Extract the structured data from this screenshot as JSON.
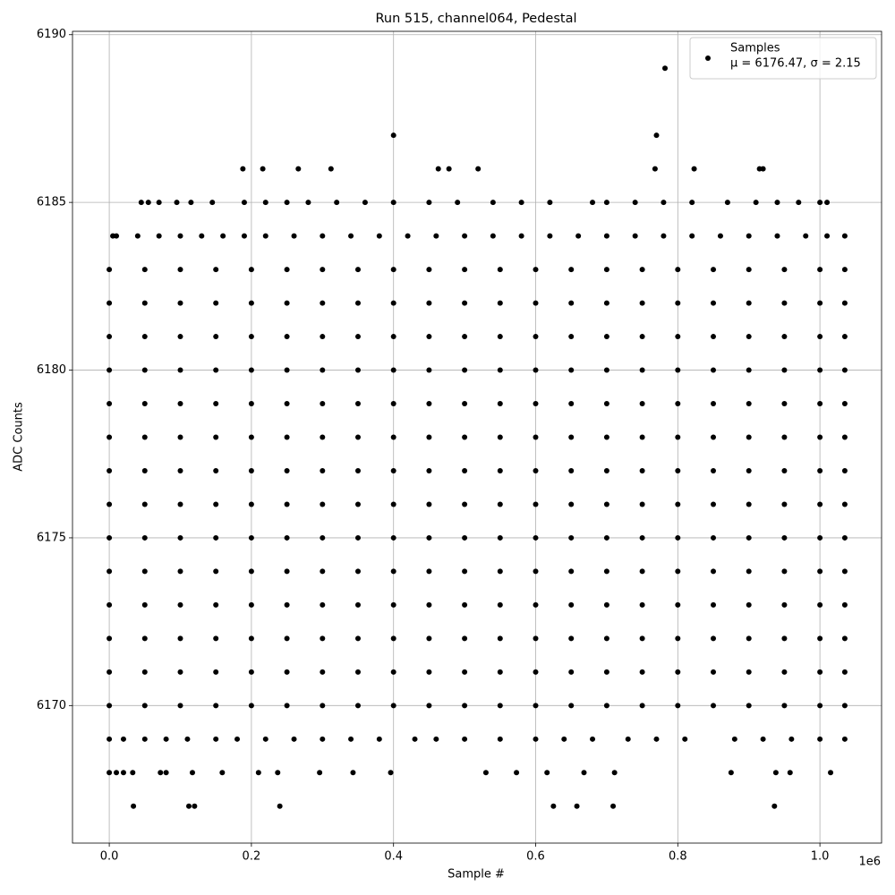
{
  "chart_data": {
    "type": "scatter",
    "title": "Run 515, channel064, Pedestal",
    "x_label": "Sample #",
    "y_label": "ADC Counts",
    "x_offset_label": "1e6",
    "xlim": [
      -51750,
      1086750
    ],
    "ylim": [
      6165.9,
      6190.1
    ],
    "xticks": [
      {
        "value": 0,
        "label": "0.0"
      },
      {
        "value": 200000,
        "label": "0.2"
      },
      {
        "value": 400000,
        "label": "0.4"
      },
      {
        "value": 600000,
        "label": "0.6"
      },
      {
        "value": 800000,
        "label": "0.8"
      },
      {
        "value": 1000000,
        "label": "1.0"
      }
    ],
    "yticks": [
      6170,
      6175,
      6180,
      6185,
      6190
    ],
    "grid": true,
    "legend": "upper right",
    "series": [
      {
        "name": "Samples",
        "legend_note": "μ = 6176.47, σ = 2.15",
        "color": "#000000",
        "x": [
          0,
          50000,
          100000,
          150000,
          200000,
          250000,
          300000,
          350000,
          400000,
          450000,
          500000,
          550000,
          600000,
          650000,
          700000,
          750000,
          800000,
          850000,
          900000,
          950000,
          1000000,
          1035000,
          0,
          50000,
          100000,
          150000,
          200000,
          250000,
          300000,
          350000,
          400000,
          450000,
          500000,
          550000,
          600000,
          650000,
          700000,
          750000,
          800000,
          850000,
          900000,
          950000,
          1000000,
          1035000,
          0,
          50000,
          100000,
          150000,
          200000,
          250000,
          300000,
          350000,
          400000,
          450000,
          500000,
          550000,
          600000,
          650000,
          700000,
          750000,
          800000,
          850000,
          900000,
          950000,
          1000000,
          1035000,
          0,
          50000,
          100000,
          150000,
          200000,
          250000,
          300000,
          350000,
          400000,
          450000,
          500000,
          550000,
          600000,
          650000,
          700000,
          750000,
          800000,
          850000,
          900000,
          950000,
          1000000,
          1035000,
          0,
          50000,
          100000,
          150000,
          200000,
          250000,
          300000,
          350000,
          400000,
          450000,
          500000,
          550000,
          600000,
          650000,
          700000,
          750000,
          800000,
          850000,
          900000,
          950000,
          1000000,
          1035000,
          0,
          50000,
          100000,
          150000,
          200000,
          250000,
          300000,
          350000,
          400000,
          450000,
          500000,
          550000,
          600000,
          650000,
          700000,
          750000,
          800000,
          850000,
          900000,
          950000,
          1000000,
          1035000,
          0,
          50000,
          100000,
          150000,
          200000,
          250000,
          300000,
          350000,
          400000,
          450000,
          500000,
          550000,
          600000,
          650000,
          700000,
          750000,
          800000,
          850000,
          900000,
          950000,
          1000000,
          1035000,
          0,
          50000,
          100000,
          150000,
          200000,
          250000,
          300000,
          350000,
          400000,
          450000,
          500000,
          550000,
          600000,
          650000,
          700000,
          750000,
          800000,
          850000,
          900000,
          950000,
          1000000,
          1035000,
          0,
          50000,
          100000,
          150000,
          200000,
          250000,
          300000,
          350000,
          400000,
          450000,
          500000,
          550000,
          600000,
          650000,
          700000,
          750000,
          800000,
          850000,
          900000,
          950000,
          1000000,
          1035000,
          0,
          50000,
          100000,
          150000,
          200000,
          250000,
          300000,
          350000,
          400000,
          450000,
          500000,
          550000,
          600000,
          650000,
          700000,
          750000,
          800000,
          850000,
          900000,
          950000,
          1000000,
          1035000,
          0,
          50000,
          100000,
          150000,
          200000,
          250000,
          300000,
          350000,
          400000,
          450000,
          500000,
          550000,
          600000,
          650000,
          700000,
          750000,
          800000,
          850000,
          900000,
          950000,
          1000000,
          1035000,
          0,
          50000,
          100000,
          150000,
          200000,
          250000,
          300000,
          350000,
          400000,
          450000,
          500000,
          550000,
          600000,
          650000,
          700000,
          750000,
          800000,
          850000,
          900000,
          950000,
          1000000,
          1035000,
          0,
          50000,
          100000,
          150000,
          200000,
          250000,
          300000,
          350000,
          400000,
          450000,
          500000,
          550000,
          600000,
          650000,
          700000,
          750000,
          800000,
          850000,
          900000,
          950000,
          1000000,
          1035000,
          0,
          50000,
          100000,
          150000,
          200000,
          250000,
          300000,
          350000,
          400000,
          450000,
          500000,
          550000,
          600000,
          650000,
          700000,
          750000,
          800000,
          850000,
          900000,
          950000,
          1000000,
          1035000,
          34000,
          112000,
          120000,
          240000,
          625000,
          658000,
          709000,
          936000,
          0,
          10000,
          20000,
          33000,
          72000,
          80000,
          117000,
          159000,
          210000,
          237000,
          296000,
          343000,
          396000,
          530000,
          573000,
          616000,
          668000,
          711000,
          875000,
          938000,
          958000,
          1015000,
          0,
          20000,
          50000,
          80000,
          110000,
          150000,
          180000,
          220000,
          260000,
          300000,
          340000,
          380000,
          430000,
          460000,
          500000,
          550000,
          600000,
          640000,
          680000,
          730000,
          770000,
          810000,
          880000,
          920000,
          960000,
          1000000,
          1035000,
          5000,
          10000,
          40000,
          70000,
          100000,
          130000,
          160000,
          190000,
          220000,
          260000,
          300000,
          340000,
          380000,
          420000,
          460000,
          500000,
          540000,
          580000,
          620000,
          660000,
          700000,
          740000,
          780000,
          820000,
          860000,
          900000,
          940000,
          980000,
          1010000,
          1035000,
          45000,
          55000,
          70000,
          95000,
          115000,
          145000,
          190000,
          220000,
          250000,
          280000,
          320000,
          360000,
          400000,
          450000,
          490000,
          540000,
          580000,
          620000,
          680000,
          700000,
          740000,
          780000,
          820000,
          870000,
          910000,
          940000,
          970000,
          1000000,
          1010000,
          188000,
          216000,
          266000,
          312000,
          463000,
          478000,
          519000,
          768000,
          823000,
          915000,
          920000,
          400000,
          770000,
          782000
        ],
        "values": [
          6170,
          6170,
          6170,
          6170,
          6170,
          6170,
          6170,
          6170,
          6170,
          6170,
          6170,
          6170,
          6170,
          6170,
          6170,
          6170,
          6170,
          6170,
          6170,
          6170,
          6170,
          6170,
          6171,
          6171,
          6171,
          6171,
          6171,
          6171,
          6171,
          6171,
          6171,
          6171,
          6171,
          6171,
          6171,
          6171,
          6171,
          6171,
          6171,
          6171,
          6171,
          6171,
          6171,
          6171,
          6172,
          6172,
          6172,
          6172,
          6172,
          6172,
          6172,
          6172,
          6172,
          6172,
          6172,
          6172,
          6172,
          6172,
          6172,
          6172,
          6172,
          6172,
          6172,
          6172,
          6172,
          6172,
          6173,
          6173,
          6173,
          6173,
          6173,
          6173,
          6173,
          6173,
          6173,
          6173,
          6173,
          6173,
          6173,
          6173,
          6173,
          6173,
          6173,
          6173,
          6173,
          6173,
          6173,
          6173,
          6174,
          6174,
          6174,
          6174,
          6174,
          6174,
          6174,
          6174,
          6174,
          6174,
          6174,
          6174,
          6174,
          6174,
          6174,
          6174,
          6174,
          6174,
          6174,
          6174,
          6174,
          6174,
          6175,
          6175,
          6175,
          6175,
          6175,
          6175,
          6175,
          6175,
          6175,
          6175,
          6175,
          6175,
          6175,
          6175,
          6175,
          6175,
          6175,
          6175,
          6175,
          6175,
          6175,
          6175,
          6176,
          6176,
          6176,
          6176,
          6176,
          6176,
          6176,
          6176,
          6176,
          6176,
          6176,
          6176,
          6176,
          6176,
          6176,
          6176,
          6176,
          6176,
          6176,
          6176,
          6176,
          6176,
          6177,
          6177,
          6177,
          6177,
          6177,
          6177,
          6177,
          6177,
          6177,
          6177,
          6177,
          6177,
          6177,
          6177,
          6177,
          6177,
          6177,
          6177,
          6177,
          6177,
          6177,
          6177,
          6178,
          6178,
          6178,
          6178,
          6178,
          6178,
          6178,
          6178,
          6178,
          6178,
          6178,
          6178,
          6178,
          6178,
          6178,
          6178,
          6178,
          6178,
          6178,
          6178,
          6178,
          6178,
          6179,
          6179,
          6179,
          6179,
          6179,
          6179,
          6179,
          6179,
          6179,
          6179,
          6179,
          6179,
          6179,
          6179,
          6179,
          6179,
          6179,
          6179,
          6179,
          6179,
          6179,
          6179,
          6180,
          6180,
          6180,
          6180,
          6180,
          6180,
          6180,
          6180,
          6180,
          6180,
          6180,
          6180,
          6180,
          6180,
          6180,
          6180,
          6180,
          6180,
          6180,
          6180,
          6180,
          6180,
          6181,
          6181,
          6181,
          6181,
          6181,
          6181,
          6181,
          6181,
          6181,
          6181,
          6181,
          6181,
          6181,
          6181,
          6181,
          6181,
          6181,
          6181,
          6181,
          6181,
          6181,
          6181,
          6182,
          6182,
          6182,
          6182,
          6182,
          6182,
          6182,
          6182,
          6182,
          6182,
          6182,
          6182,
          6182,
          6182,
          6182,
          6182,
          6182,
          6182,
          6182,
          6182,
          6182,
          6182,
          6183,
          6183,
          6183,
          6183,
          6183,
          6183,
          6183,
          6183,
          6183,
          6183,
          6183,
          6183,
          6183,
          6183,
          6183,
          6183,
          6183,
          6183,
          6183,
          6183,
          6183,
          6183,
          6167,
          6167,
          6167,
          6167,
          6167,
          6167,
          6167,
          6167,
          6168,
          6168,
          6168,
          6168,
          6168,
          6168,
          6168,
          6168,
          6168,
          6168,
          6168,
          6168,
          6168,
          6168,
          6168,
          6168,
          6168,
          6168,
          6168,
          6168,
          6168,
          6168,
          6169,
          6169,
          6169,
          6169,
          6169,
          6169,
          6169,
          6169,
          6169,
          6169,
          6169,
          6169,
          6169,
          6169,
          6169,
          6169,
          6169,
          6169,
          6169,
          6169,
          6169,
          6169,
          6169,
          6169,
          6169,
          6169,
          6169,
          6184,
          6184,
          6184,
          6184,
          6184,
          6184,
          6184,
          6184,
          6184,
          6184,
          6184,
          6184,
          6184,
          6184,
          6184,
          6184,
          6184,
          6184,
          6184,
          6184,
          6184,
          6184,
          6184,
          6184,
          6184,
          6184,
          6184,
          6184,
          6184,
          6184,
          6185,
          6185,
          6185,
          6185,
          6185,
          6185,
          6185,
          6185,
          6185,
          6185,
          6185,
          6185,
          6185,
          6185,
          6185,
          6185,
          6185,
          6185,
          6185,
          6185,
          6185,
          6185,
          6185,
          6185,
          6185,
          6185,
          6185,
          6185,
          6185,
          6186,
          6186,
          6186,
          6186,
          6186,
          6186,
          6186,
          6186,
          6186,
          6186,
          6186,
          6187,
          6187,
          6189
        ]
      }
    ]
  }
}
